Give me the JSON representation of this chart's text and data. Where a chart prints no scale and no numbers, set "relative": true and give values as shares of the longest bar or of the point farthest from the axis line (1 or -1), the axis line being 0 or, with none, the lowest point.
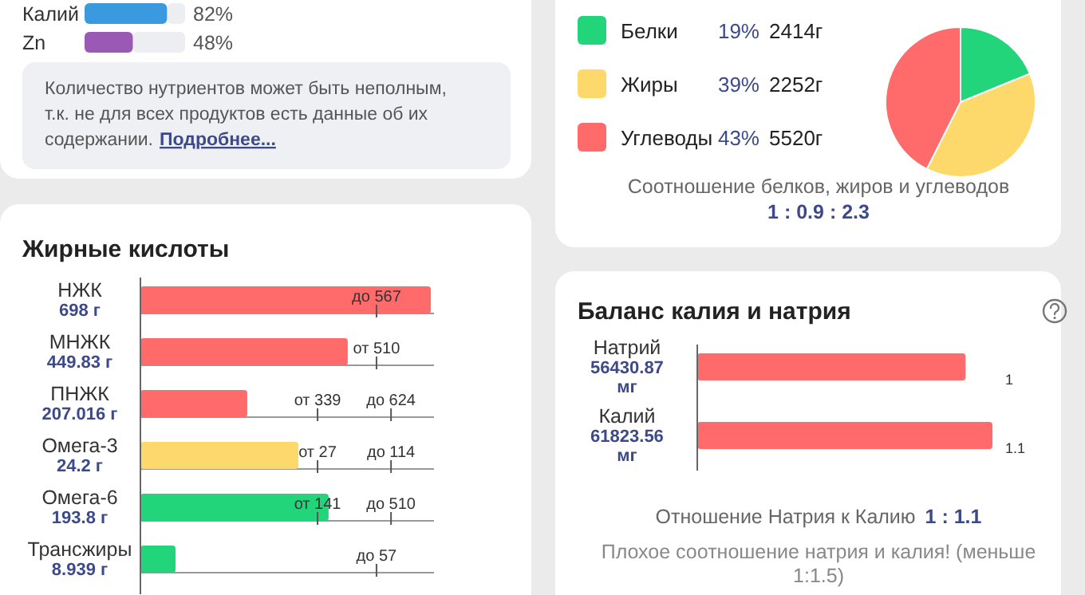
{
  "chart_data": [
    {
      "type": "bar",
      "orientation": "horizontal",
      "categories": [
        "Калий",
        "Zn"
      ],
      "values": [
        82,
        48
      ],
      "colors": [
        "#3b99e0",
        "#9b59b6"
      ],
      "xlim": [
        0,
        100
      ],
      "tick_labels": false,
      "value_labels": [
        "82%",
        "48%"
      ]
    },
    {
      "type": "other",
      "annotations": [
        "Количество нутриентов может быть неполным, т.к. не для всех продуктов есть данные об их содержании.",
        "Подробнее..."
      ]
    },
    {
      "type": "bar",
      "orientation": "horizontal",
      "relative": true,
      "title": "Жирные кислоты",
      "categories": [
        "НЖК\n698 г",
        "МНЖК\n449.83 г",
        "ПНЖК\n207.016 г",
        "Омега-3\n24.2 г",
        "Омега-6\n193.8 г",
        "Трансжиры\n8.939 г"
      ],
      "values": [
        1,
        0.714,
        0.368,
        0.544,
        0.648,
        0.121
      ],
      "colors": [
        "#ff6b6b",
        "#ff6b6b",
        "#ff6b6b",
        "#fcd96a",
        "#22d47a",
        "#22d47a"
      ],
      "annotations": [
        "до 567",
        "от 510",
        "от 339",
        "до 624",
        "от 27",
        "до 114",
        "от 141",
        "до 510",
        "до 57"
      ]
    },
    {
      "type": "pie",
      "categories": [
        "Белки",
        "Жиры",
        "Углеводы"
      ],
      "values": [
        19,
        39,
        43
      ],
      "colors": [
        "#22d47a",
        "#fcd96a",
        "#ff6b6b"
      ],
      "value_labels": [
        "19%",
        "39%",
        "43%"
      ],
      "legend": "left",
      "annotations": [
        "2414г",
        "2252г",
        "5520г",
        "Соотношение белков, жиров и углеводов",
        "1 : 0.9 : 2.3"
      ]
    },
    {
      "type": "bar",
      "orientation": "horizontal",
      "title": "Баланс калия и натрия",
      "categories": [
        "Натрий\n56430.87\nмг",
        "Калий\n61823.56\nмг"
      ],
      "values": [
        1,
        1.1
      ],
      "colors": [
        "#ff6b6b",
        "#ff6b6b"
      ],
      "data_labels": true,
      "annotations": [
        "Отношение Натрия к Калию",
        "1 : 1.1",
        "Плохое соотношение натрия и калия! (меньше 1:1.5)"
      ]
    }
  ]
}
